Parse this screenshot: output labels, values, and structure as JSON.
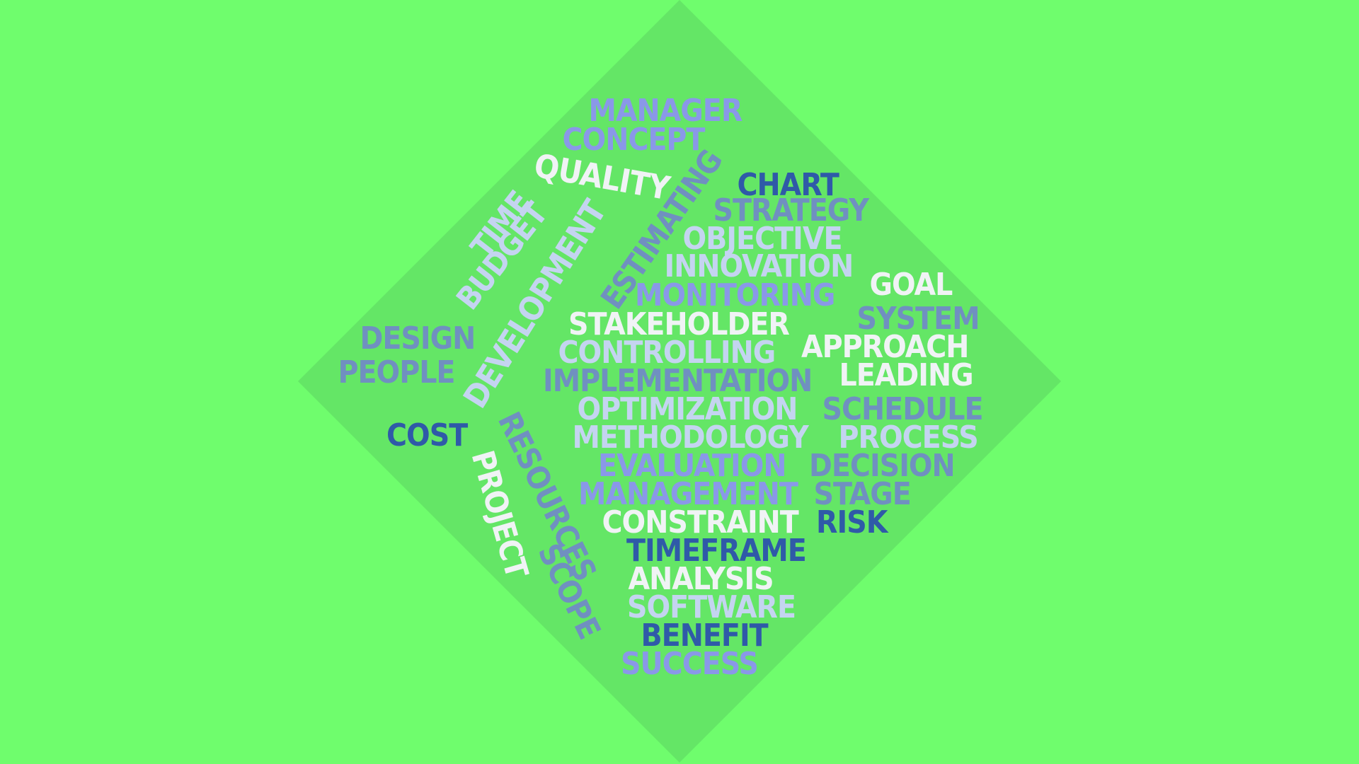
{
  "colors": {
    "background": "#6ffd6d",
    "diamond": "#64e666",
    "white": "#f0f3f5",
    "pale_blue": "#c4d4f0",
    "periwinkle": "#8a98e8",
    "slate_blue": "#7090c0",
    "navy": "#2f5aa8"
  },
  "words": [
    {
      "id": "manager",
      "text": "MANAGER",
      "color": "periwinkle"
    },
    {
      "id": "concept",
      "text": "CONCEPT",
      "color": "periwinkle"
    },
    {
      "id": "quality",
      "text": "QUALITY",
      "color": "white"
    },
    {
      "id": "estimating",
      "text": "ESTIMATING",
      "color": "slate_blue"
    },
    {
      "id": "chart",
      "text": "CHART",
      "color": "navy"
    },
    {
      "id": "strategy",
      "text": "STRATEGY",
      "color": "slate_blue"
    },
    {
      "id": "time",
      "text": "TIME",
      "color": "pale_blue"
    },
    {
      "id": "budget",
      "text": "BUDGET",
      "color": "pale_blue"
    },
    {
      "id": "development",
      "text": "DEVELOPMENT",
      "color": "pale_blue"
    },
    {
      "id": "objective",
      "text": "OBJECTIVE",
      "color": "pale_blue"
    },
    {
      "id": "innovation",
      "text": "INNOVATION",
      "color": "pale_blue"
    },
    {
      "id": "goal",
      "text": "GOAL",
      "color": "white"
    },
    {
      "id": "monitoring",
      "text": "MONITORING",
      "color": "periwinkle"
    },
    {
      "id": "system",
      "text": "SYSTEM",
      "color": "slate_blue"
    },
    {
      "id": "stakeholder",
      "text": "STAKEHOLDER",
      "color": "white"
    },
    {
      "id": "design",
      "text": "DESIGN",
      "color": "slate_blue"
    },
    {
      "id": "approach",
      "text": "APPROACH",
      "color": "white"
    },
    {
      "id": "controlling",
      "text": "CONTROLLING",
      "color": "pale_blue"
    },
    {
      "id": "people",
      "text": "PEOPLE",
      "color": "slate_blue"
    },
    {
      "id": "leading",
      "text": "LEADING",
      "color": "white"
    },
    {
      "id": "implementation",
      "text": "IMPLEMENTATION",
      "color": "slate_blue"
    },
    {
      "id": "optimization",
      "text": "OPTIMIZATION",
      "color": "pale_blue"
    },
    {
      "id": "schedule",
      "text": "SCHEDULE",
      "color": "slate_blue"
    },
    {
      "id": "cost",
      "text": "COST",
      "color": "navy"
    },
    {
      "id": "resources",
      "text": "RESOURCES",
      "color": "slate_blue"
    },
    {
      "id": "methodology",
      "text": "METHODOLOGY",
      "color": "pale_blue"
    },
    {
      "id": "process",
      "text": "PROCESS",
      "color": "pale_blue"
    },
    {
      "id": "project",
      "text": "PROJECT",
      "color": "white"
    },
    {
      "id": "evaluation",
      "text": "EVALUATION",
      "color": "periwinkle"
    },
    {
      "id": "decision",
      "text": "DECISION",
      "color": "slate_blue"
    },
    {
      "id": "management",
      "text": "MANAGEMENT",
      "color": "periwinkle"
    },
    {
      "id": "stage",
      "text": "STAGE",
      "color": "slate_blue"
    },
    {
      "id": "constraint",
      "text": "CONSTRAINT",
      "color": "white"
    },
    {
      "id": "risk",
      "text": "RISK",
      "color": "navy"
    },
    {
      "id": "scope",
      "text": "SCOPE",
      "color": "slate_blue"
    },
    {
      "id": "timeframe",
      "text": "TIMEFRAME",
      "color": "navy"
    },
    {
      "id": "analysis",
      "text": "ANALYSIS",
      "color": "white"
    },
    {
      "id": "software",
      "text": "SOFTWARE",
      "color": "pale_blue"
    },
    {
      "id": "benefit",
      "text": "BENEFIT",
      "color": "navy"
    },
    {
      "id": "success",
      "text": "SUCCESS",
      "color": "periwinkle"
    }
  ]
}
